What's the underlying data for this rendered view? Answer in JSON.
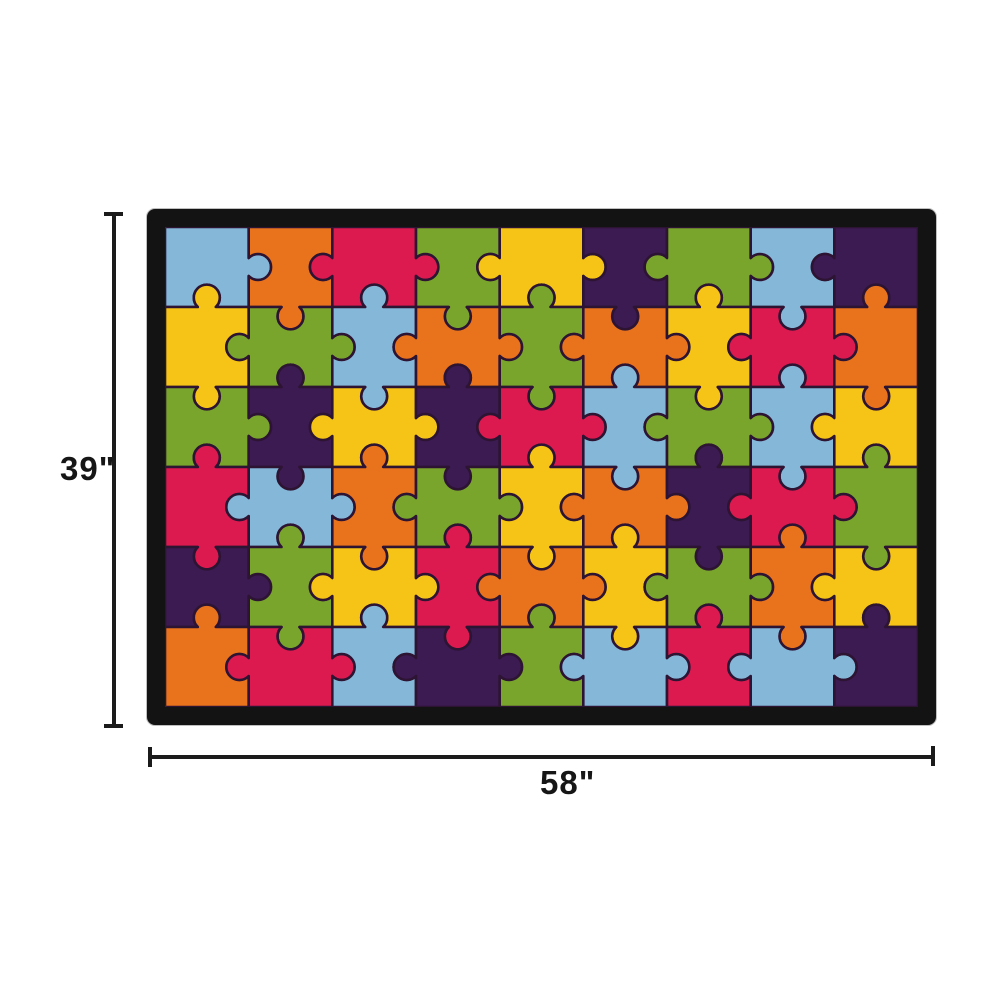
{
  "product": {
    "description": "Colorful jigsaw puzzle pattern area rug with black border, shown with dimension lines"
  },
  "dimensions": {
    "height_label": "39\"",
    "width_label": "58\""
  },
  "annotation": {
    "line_color": "#1b1b1b",
    "label_color": "#161616"
  },
  "rug": {
    "border_color": "#131313",
    "outline_color": "#2d1433",
    "rows": 6,
    "cols": 9,
    "palette": {
      "lightblue": "#85b7d9",
      "orange": "#e9731d",
      "crimson": "#dc1a50",
      "green": "#7aa52d",
      "yellow": "#f5c416",
      "purple": "#3c1a52"
    },
    "pieces": [
      [
        "lightblue",
        "orange",
        "crimson",
        "green",
        "yellow",
        "purple",
        "green",
        "lightblue",
        "purple"
      ],
      [
        "yellow",
        "green",
        "lightblue",
        "orange",
        "green",
        "orange",
        "yellow",
        "crimson",
        "orange"
      ],
      [
        "green",
        "purple",
        "yellow",
        "purple",
        "crimson",
        "lightblue",
        "green",
        "lightblue",
        "yellow"
      ],
      [
        "crimson",
        "lightblue",
        "orange",
        "green",
        "yellow",
        "orange",
        "purple",
        "crimson",
        "green"
      ],
      [
        "purple",
        "green",
        "yellow",
        "crimson",
        "orange",
        "yellow",
        "green",
        "orange",
        "yellow"
      ],
      [
        "orange",
        "crimson",
        "lightblue",
        "purple",
        "green",
        "lightblue",
        "crimson",
        "lightblue",
        "purple"
      ]
    ]
  }
}
